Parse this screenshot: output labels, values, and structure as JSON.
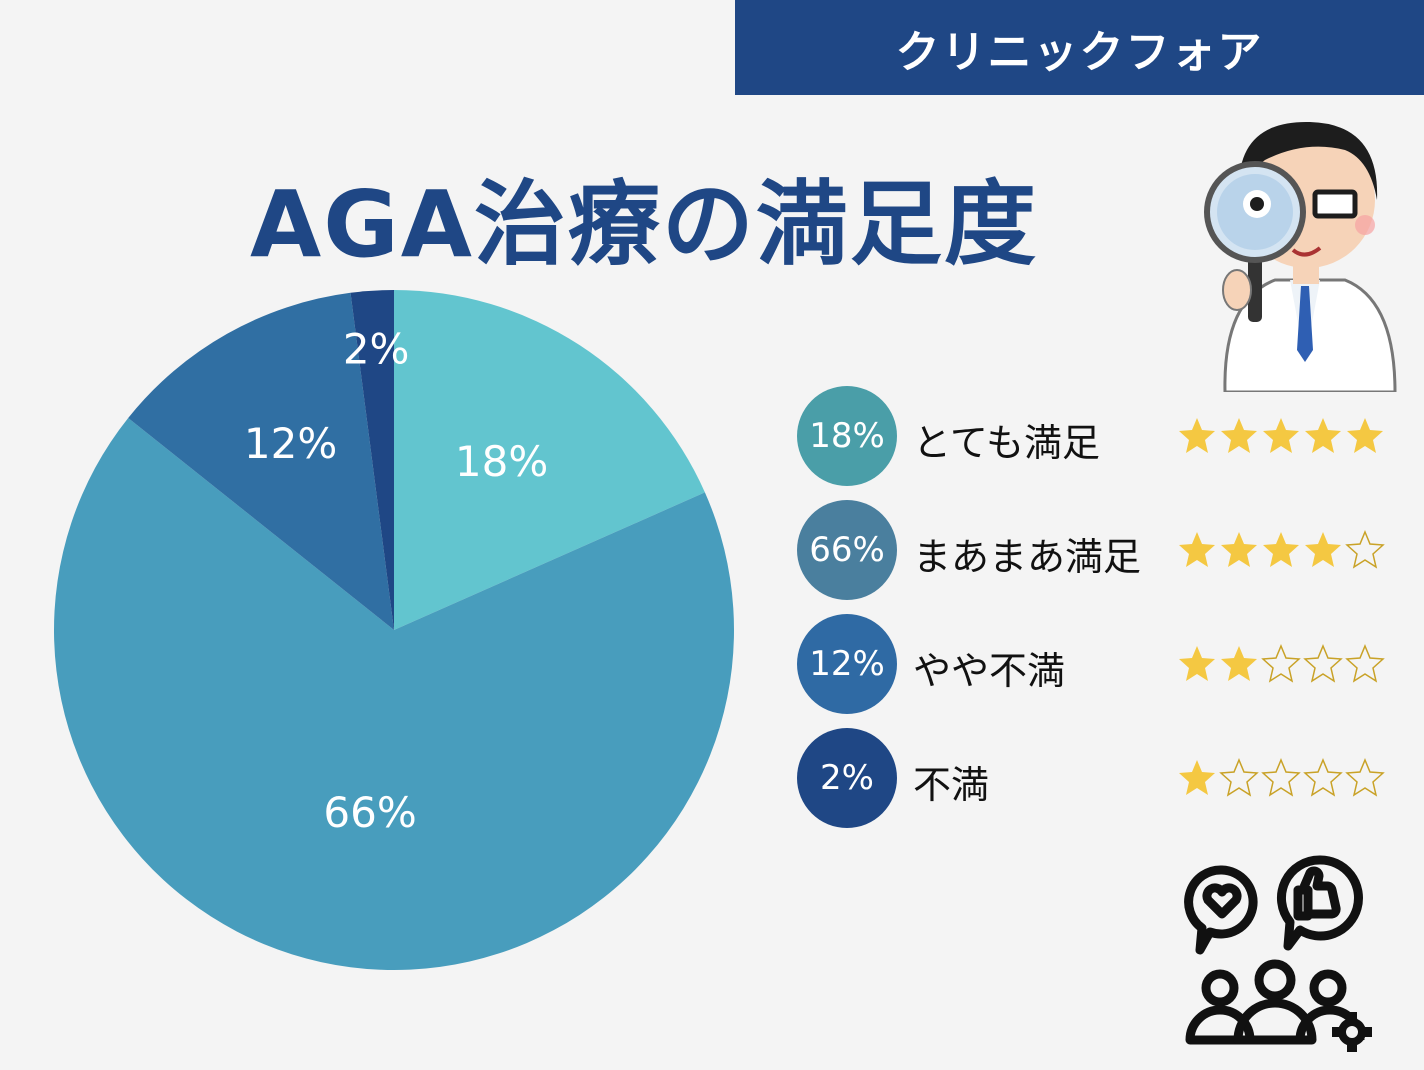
{
  "brand": {
    "name": "クリニックフォア"
  },
  "title": "AGA治療の満足度",
  "colors": {
    "banner": "#1f4785",
    "title": "#1f4785",
    "star_filled": "#f4c842",
    "star_empty_stroke": "#c9a227",
    "badges": [
      "#4a9ea8",
      "#4a7f9e",
      "#2f6aa4",
      "#1f4785"
    ]
  },
  "chart_data": {
    "type": "pie",
    "title": "AGA治療の満足度",
    "slices": [
      {
        "label": "とても満足",
        "value": 18,
        "display": "18%",
        "color": "#62c5cf"
      },
      {
        "label": "まあまあ満足",
        "value": 66,
        "display": "66%",
        "color": "#489dbd"
      },
      {
        "label": "やや不満",
        "value": 12,
        "display": "12%",
        "color": "#306fa3"
      },
      {
        "label": "不満",
        "value": 2,
        "display": "2%",
        "color": "#1f4785"
      }
    ]
  },
  "legend": [
    {
      "percent": "18%",
      "label": "とても満足",
      "stars": 5
    },
    {
      "percent": "66%",
      "label": "まあまあ満足",
      "stars": 4
    },
    {
      "percent": "12%",
      "label": "やや不満",
      "stars": 2
    },
    {
      "percent": "2%",
      "label": "不満",
      "stars": 1
    }
  ],
  "icons": {
    "doctor": "doctor-with-magnifier-icon",
    "community": "community-feedback-icon"
  }
}
